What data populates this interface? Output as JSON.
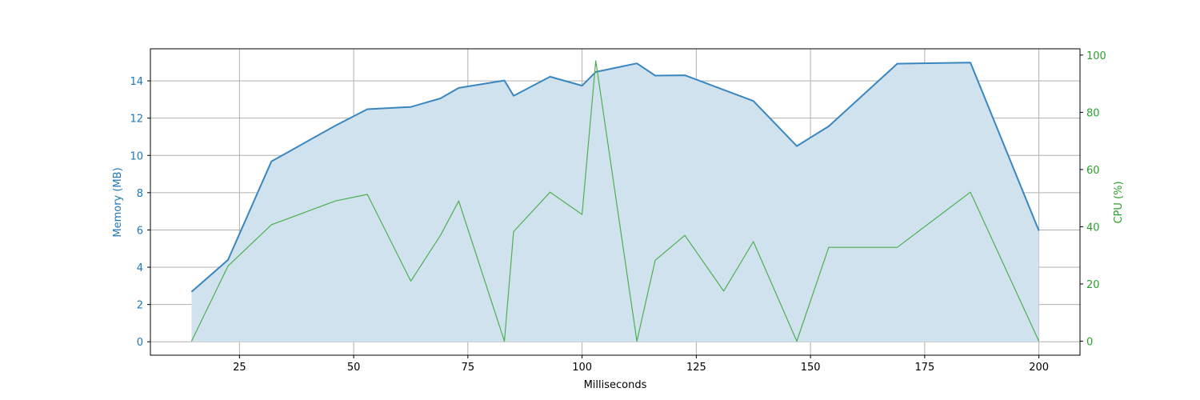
{
  "chart_data": {
    "type": "area",
    "title": "",
    "xlabel": "Milliseconds",
    "ylabel_left": "Memory (MB)",
    "ylabel_right": "CPU (%)",
    "xlim": [
      5.5,
      209
    ],
    "ylim_left": [
      -0.72,
      15.72
    ],
    "ylim_right": [
      -4.9,
      102.2
    ],
    "x_ticks": [
      25,
      50,
      75,
      100,
      125,
      150,
      175,
      200
    ],
    "y_ticks_left": [
      0,
      2,
      4,
      6,
      8,
      10,
      12,
      14
    ],
    "y_ticks_right": [
      0,
      20,
      40,
      60,
      80,
      100
    ],
    "grid": true,
    "colors": {
      "memory": "#3a87c0",
      "memory_fill": "#d1e2ef",
      "cpu": "#4caf50",
      "left_axis_text": "#1f77b4",
      "right_axis_text": "#2ca02c",
      "grid": "#b0b0b0"
    },
    "series": [
      {
        "name": "Memory (MB)",
        "axis": "left",
        "style": "filled-area",
        "x": [
          14.5,
          22.5,
          32,
          46,
          53,
          62.5,
          69,
          73,
          83,
          85,
          93,
          100,
          103,
          112,
          116,
          122.5,
          137.5,
          147,
          154,
          169,
          185,
          200
        ],
        "y": [
          2.68,
          4.4,
          9.68,
          11.6,
          12.48,
          12.6,
          13.06,
          13.62,
          14.02,
          13.2,
          14.22,
          13.74,
          14.48,
          14.94,
          14.28,
          14.3,
          12.92,
          10.5,
          11.56,
          14.92,
          14.98,
          5.96
        ]
      },
      {
        "name": "CPU (%)",
        "axis": "right",
        "style": "line",
        "x": [
          14.5,
          22.5,
          32,
          46,
          53,
          62.5,
          69,
          73,
          83,
          85,
          93,
          100,
          103,
          112,
          116,
          122.5,
          131,
          137.5,
          147,
          154,
          169,
          185,
          200
        ],
        "y": [
          0,
          26.3,
          40.7,
          49,
          51.3,
          21,
          37,
          49,
          0,
          38.3,
          52.1,
          44.3,
          98,
          0,
          28.3,
          37,
          17.5,
          34.8,
          0,
          32.8,
          32.8,
          52.1,
          0
        ]
      }
    ]
  }
}
